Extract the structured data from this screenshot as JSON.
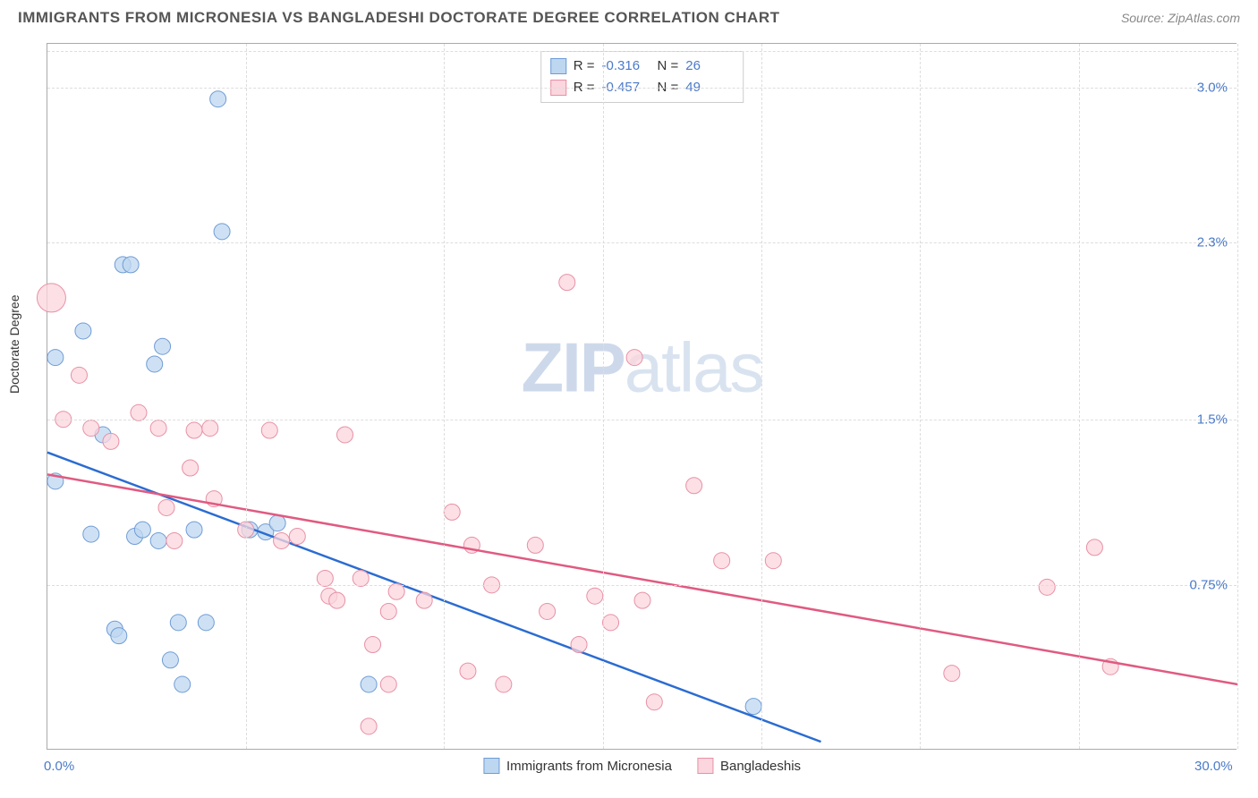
{
  "meta": {
    "title": "IMMIGRANTS FROM MICRONESIA VS BANGLADESHI DOCTORATE DEGREE CORRELATION CHART",
    "source_label": "Source: ZipAtlas.com",
    "ylabel": "Doctorate Degree",
    "watermark_a": "ZIP",
    "watermark_b": "atlas"
  },
  "style": {
    "background_color": "#ffffff",
    "grid_color": "#e0e0e0",
    "axis_color": "#aaaaaa",
    "tick_label_color": "#4a7ac9",
    "title_fontsize": 17,
    "label_fontsize": 14,
    "tick_fontsize": 15
  },
  "chart": {
    "type": "scatter",
    "xlim": [
      0,
      30
    ],
    "ylim": [
      0,
      3.2
    ],
    "x_ticks": [
      0,
      30
    ],
    "x_tick_labels": [
      "0.0%",
      "30.0%"
    ],
    "x_grid_at": [
      5,
      10,
      14,
      18,
      22,
      26,
      30
    ],
    "y_ticks": [
      0.75,
      1.5,
      2.3,
      3.0
    ],
    "y_tick_labels": [
      "0.75%",
      "1.5%",
      "2.3%",
      "3.0%"
    ],
    "series": [
      {
        "name": "Immigrants from Micronesia",
        "marker_fill": "#bdd7f0",
        "marker_stroke": "#6f9cd6",
        "line_color": "#2b6cd1",
        "R_label": "R =",
        "R_value": "-0.316",
        "N_label": "N =",
        "N_value": "26",
        "points": [
          [
            0.2,
            1.22
          ],
          [
            0.2,
            1.78
          ],
          [
            0.9,
            1.9
          ],
          [
            1.1,
            0.98
          ],
          [
            1.4,
            1.43
          ],
          [
            1.7,
            0.55
          ],
          [
            1.8,
            0.52
          ],
          [
            1.9,
            2.2
          ],
          [
            2.1,
            2.2
          ],
          [
            2.2,
            0.97
          ],
          [
            2.4,
            1.0
          ],
          [
            2.7,
            1.75
          ],
          [
            2.8,
            0.95
          ],
          [
            2.9,
            1.83
          ],
          [
            3.1,
            0.41
          ],
          [
            3.3,
            0.58
          ],
          [
            3.4,
            0.3
          ],
          [
            3.7,
            1.0
          ],
          [
            4.0,
            0.58
          ],
          [
            4.3,
            2.95
          ],
          [
            4.4,
            2.35
          ],
          [
            5.1,
            1.0
          ],
          [
            5.5,
            0.99
          ],
          [
            5.8,
            1.03
          ],
          [
            8.1,
            0.3
          ],
          [
            17.8,
            0.2
          ]
        ],
        "regression": {
          "x1": 0,
          "y1": 1.35,
          "x2": 19.5,
          "y2": 0.04
        }
      },
      {
        "name": "Bangladeshis",
        "marker_fill": "#fbd6de",
        "marker_stroke": "#e890a5",
        "line_color": "#e05a81",
        "R_label": "R =",
        "R_value": "-0.457",
        "N_label": "N =",
        "N_value": "49",
        "points": [
          [
            0.1,
            2.05
          ],
          [
            0.4,
            1.5
          ],
          [
            0.8,
            1.7
          ],
          [
            1.1,
            1.46
          ],
          [
            1.6,
            1.4
          ],
          [
            2.3,
            1.53
          ],
          [
            2.8,
            1.46
          ],
          [
            3.0,
            1.1
          ],
          [
            3.2,
            0.95
          ],
          [
            3.6,
            1.28
          ],
          [
            3.7,
            1.45
          ],
          [
            4.1,
            1.46
          ],
          [
            4.2,
            1.14
          ],
          [
            5.0,
            1.0
          ],
          [
            5.6,
            1.45
          ],
          [
            5.9,
            0.95
          ],
          [
            6.3,
            0.97
          ],
          [
            7.0,
            0.78
          ],
          [
            7.1,
            0.7
          ],
          [
            7.3,
            0.68
          ],
          [
            7.5,
            1.43
          ],
          [
            7.9,
            0.78
          ],
          [
            8.1,
            0.11
          ],
          [
            8.2,
            0.48
          ],
          [
            8.6,
            0.3
          ],
          [
            8.6,
            0.63
          ],
          [
            8.8,
            0.72
          ],
          [
            9.5,
            0.68
          ],
          [
            10.2,
            1.08
          ],
          [
            10.6,
            0.36
          ],
          [
            10.7,
            0.93
          ],
          [
            11.2,
            0.75
          ],
          [
            11.5,
            0.3
          ],
          [
            12.3,
            0.93
          ],
          [
            12.6,
            0.63
          ],
          [
            13.1,
            2.12
          ],
          [
            13.4,
            0.48
          ],
          [
            13.8,
            0.7
          ],
          [
            14.2,
            0.58
          ],
          [
            14.8,
            1.78
          ],
          [
            15.0,
            0.68
          ],
          [
            15.3,
            0.22
          ],
          [
            16.3,
            1.2
          ],
          [
            17.0,
            0.86
          ],
          [
            18.3,
            0.86
          ],
          [
            22.8,
            0.35
          ],
          [
            25.2,
            0.74
          ],
          [
            26.4,
            0.92
          ],
          [
            26.8,
            0.38
          ]
        ],
        "regression": {
          "x1": 0,
          "y1": 1.25,
          "x2": 30,
          "y2": 0.3
        }
      }
    ],
    "bottom_legend": [
      {
        "swatch_fill": "#bdd7f0",
        "swatch_stroke": "#6f9cd6",
        "label": "Immigrants from Micronesia"
      },
      {
        "swatch_fill": "#fbd6de",
        "swatch_stroke": "#e890a5",
        "label": "Bangladeshis"
      }
    ]
  }
}
